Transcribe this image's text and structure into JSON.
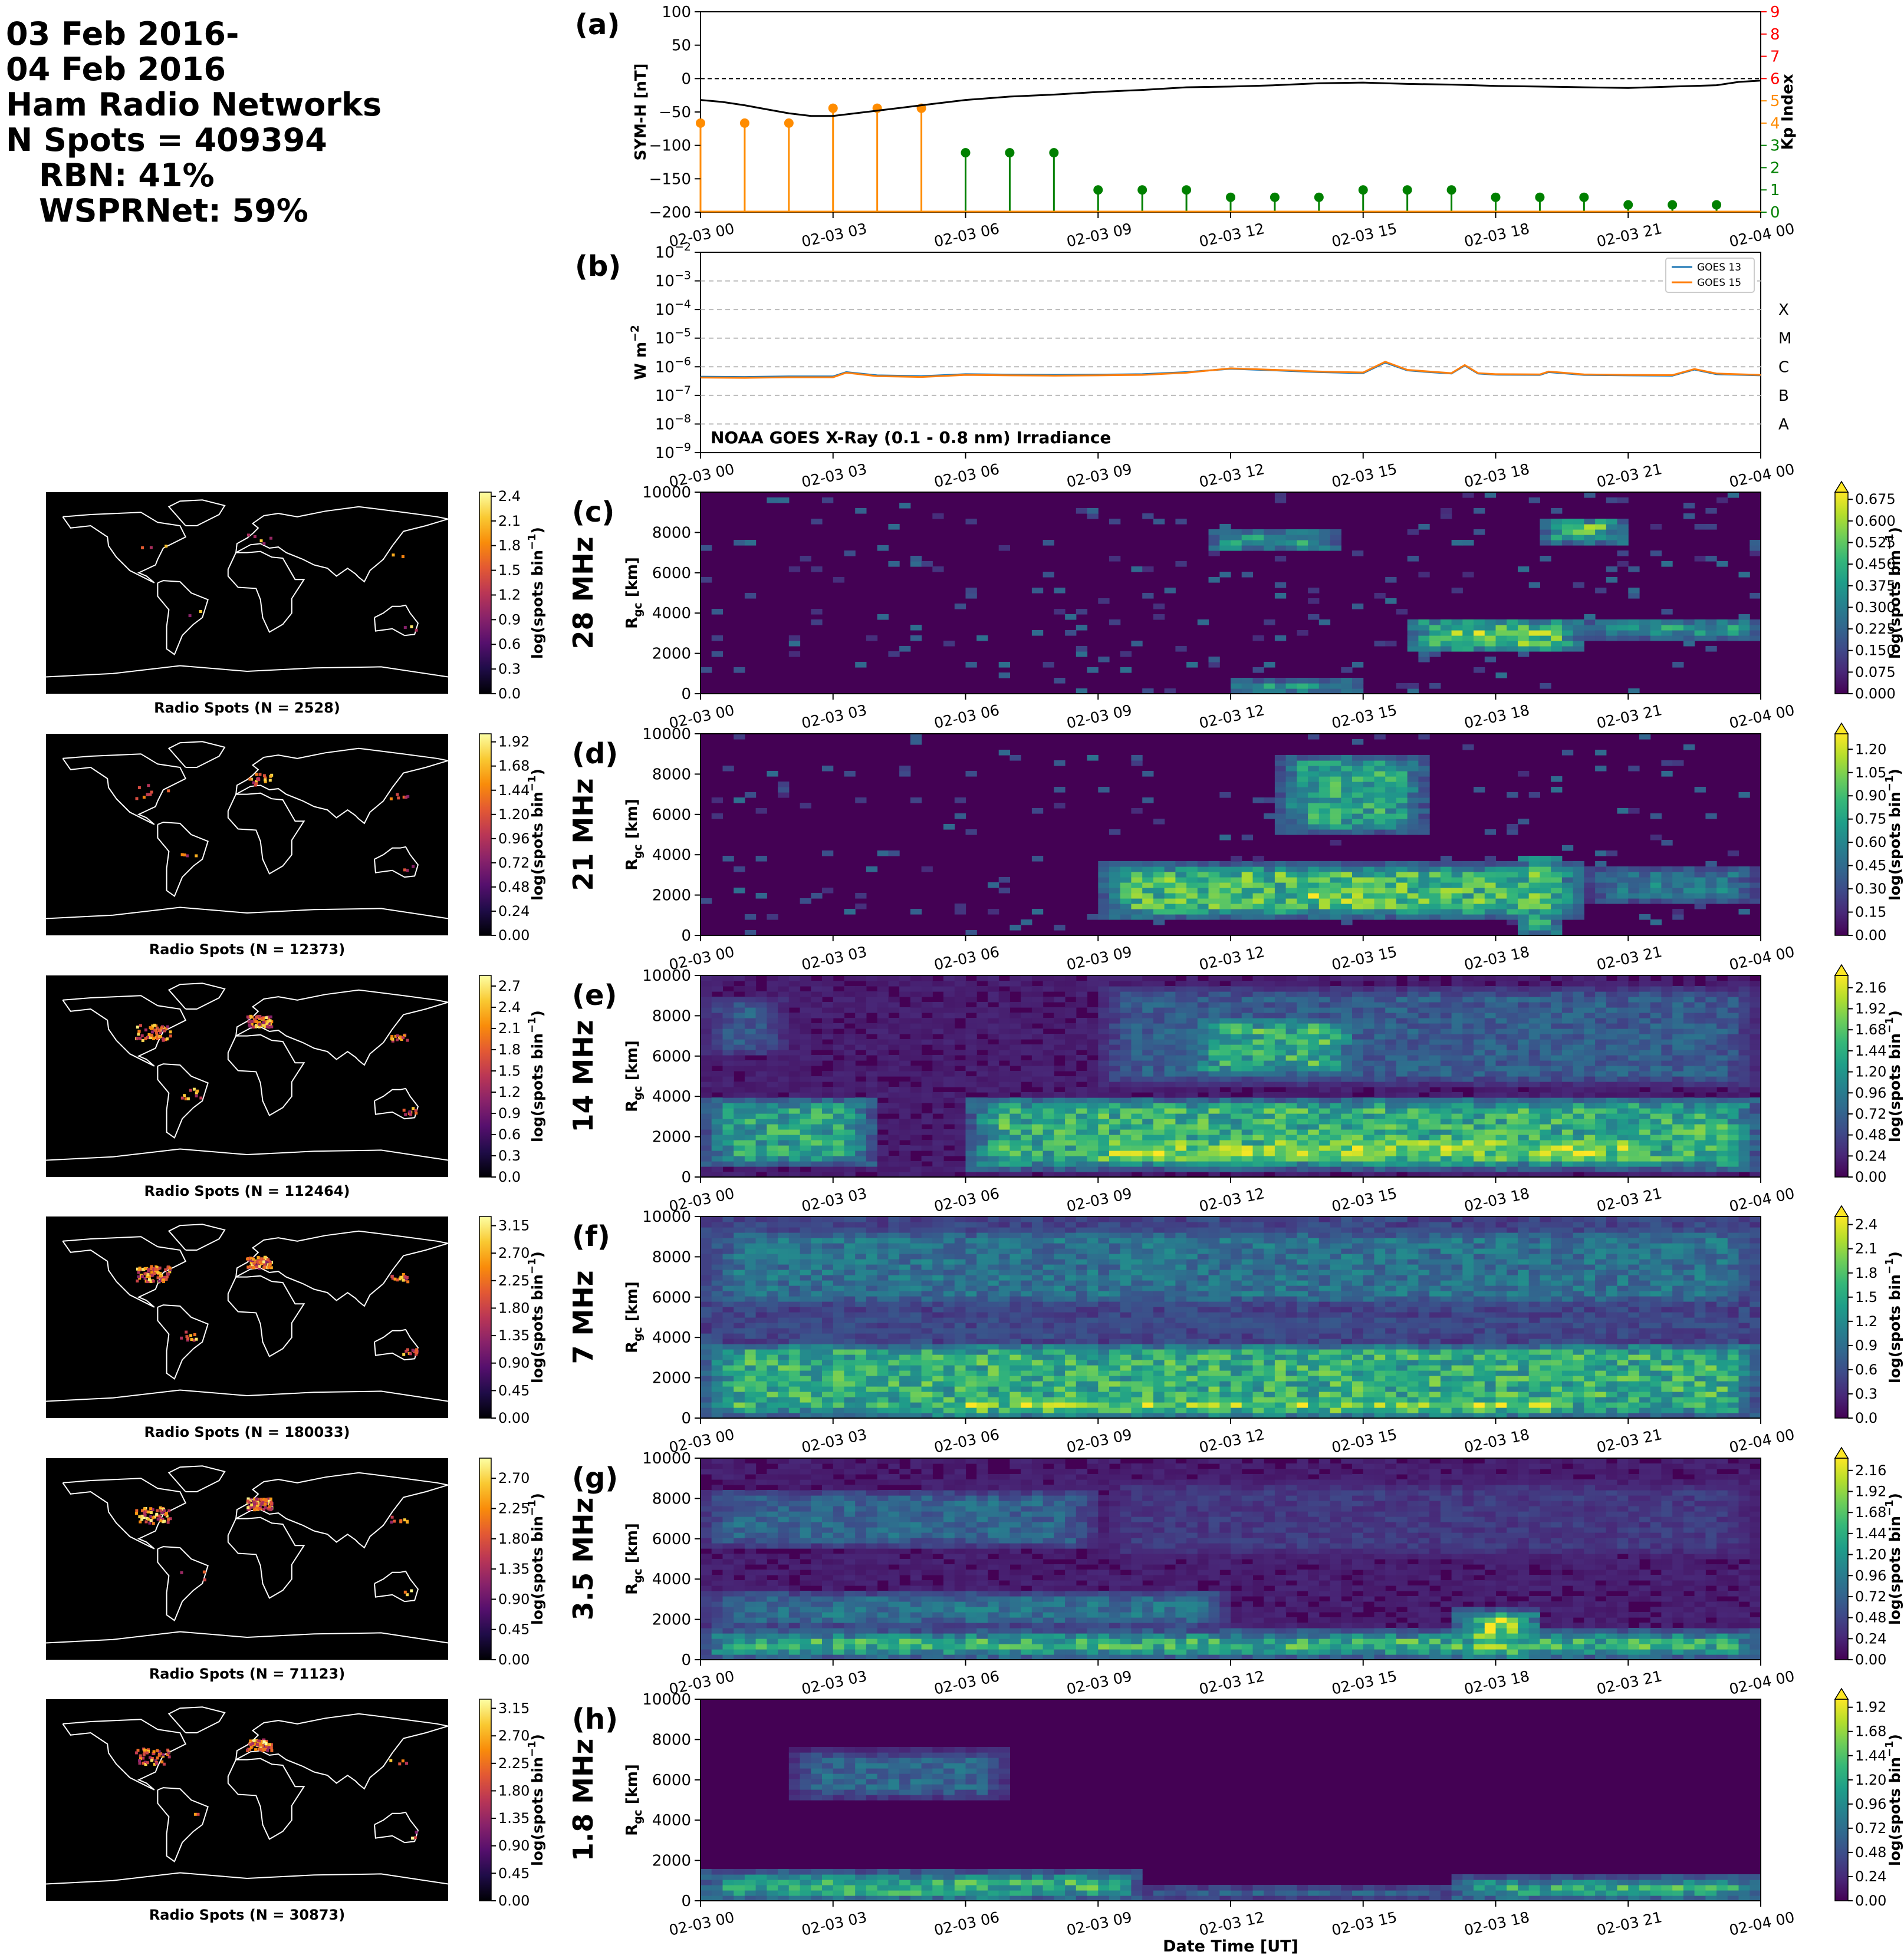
{
  "header": {
    "line1": "03 Feb 2016-",
    "line2": "04 Feb 2016",
    "line3": "Ham Radio Networks",
    "line4": "N Spots = 409394",
    "line5": "RBN: 41%",
    "line6": "WSPRNet: 59%"
  },
  "colors": {
    "sym_h": "#000000",
    "kp_low": "#008000",
    "kp_storm": "#ff8c00",
    "goes13": "#1f77b4",
    "goes15": "#ff7f0e",
    "kp_axis": "#ff0000",
    "map_bg": "#000000",
    "coast": "#ffffff"
  },
  "chart_data": [
    {
      "id": "a",
      "panel_label": "(a)",
      "type": "line",
      "ylabel": "SYM-H [nT]",
      "ylabel_right": "Kp Index",
      "ylim": [
        -200,
        100
      ],
      "ylim_right": [
        0,
        9
      ],
      "yticks": [
        100,
        50,
        0,
        -50,
        -100,
        -150,
        -200
      ],
      "yticks_right": [
        0,
        1,
        2,
        3,
        4,
        5,
        6,
        7,
        8,
        9
      ],
      "x_tick_labels": [
        "02-03 00",
        "02-03 03",
        "02-03 06",
        "02-03 09",
        "02-03 12",
        "02-03 15",
        "02-03 18",
        "02-03 21",
        "02-04 00"
      ],
      "x_range_hours": [
        0,
        24
      ],
      "sym_h": {
        "x": [
          0,
          0.5,
          1,
          1.5,
          2,
          2.5,
          3,
          3.5,
          4,
          4.5,
          5,
          5.5,
          6,
          7,
          8,
          9,
          10,
          11,
          12,
          13,
          14,
          15,
          16,
          17,
          18,
          19,
          20,
          21,
          22,
          23,
          23.5,
          24
        ],
        "y": [
          -32,
          -35,
          -40,
          -46,
          -52,
          -56,
          -56,
          -52,
          -48,
          -44,
          -40,
          -36,
          -32,
          -27,
          -24,
          -20,
          -17,
          -13,
          -12,
          -10,
          -7,
          -6,
          -8,
          -9,
          -11,
          -12,
          -13,
          -14,
          -12,
          -10,
          -5,
          -3
        ]
      },
      "kp": {
        "x": [
          0,
          1,
          2,
          3,
          4,
          5,
          6,
          7,
          8,
          9,
          10,
          11,
          12,
          13,
          14,
          15,
          16,
          17,
          18,
          19,
          20,
          21,
          22,
          23
        ],
        "y": [
          4,
          4,
          4,
          4.67,
          4.67,
          4.67,
          2.67,
          2.67,
          2.67,
          1,
          1,
          1,
          0.67,
          0.67,
          0.67,
          1,
          1,
          1,
          0.67,
          0.67,
          0.67,
          0.33,
          0.33,
          0.33
        ]
      }
    },
    {
      "id": "b",
      "panel_label": "(b)",
      "type": "line",
      "ylabel": "W m",
      "ylabel_sup": "−2",
      "log_scale": true,
      "ylim_exp": [
        -9,
        -2
      ],
      "flare_classes": [
        "X",
        "M",
        "C",
        "B",
        "A"
      ],
      "flare_class_exps": [
        -4,
        -5,
        -6,
        -7,
        -8
      ],
      "annotation": "NOAA GOES X-Ray (0.1 - 0.8 nm) Irradiance",
      "x_tick_labels": [
        "02-03 00",
        "02-03 03",
        "02-03 06",
        "02-03 09",
        "02-03 12",
        "02-03 15",
        "02-03 18",
        "02-03 21",
        "02-04 00"
      ],
      "series": [
        {
          "name": "GOES 13",
          "x": [
            0,
            1,
            2,
            3,
            3.3,
            4,
            5,
            6,
            7,
            8,
            9,
            10,
            11,
            12,
            13,
            14,
            15,
            15.5,
            16,
            16.5,
            17,
            17.3,
            17.6,
            18,
            19,
            19.2,
            20,
            21,
            22,
            22.5,
            23,
            24
          ],
          "y": [
            4.5e-07,
            4.4e-07,
            4.6e-07,
            4.6e-07,
            6.5e-07,
            5e-07,
            4.7e-07,
            5.5e-07,
            5.3e-07,
            5.2e-07,
            5.3e-07,
            5.5e-07,
            6.5e-07,
            8.5e-07,
            7.5e-07,
            6.5e-07,
            6e-07,
            1.4e-06,
            7.5e-07,
            6.5e-07,
            5.8e-07,
            1.1e-06,
            5.8e-07,
            5.3e-07,
            5.2e-07,
            6.5e-07,
            5.2e-07,
            5e-07,
            4.9e-07,
            8e-07,
            5.5e-07,
            5e-07
          ]
        },
        {
          "name": "GOES 15",
          "x": [
            0,
            1,
            2,
            3,
            3.3,
            4,
            5,
            6,
            7,
            8,
            9,
            10,
            11,
            12,
            13,
            14,
            15,
            15.5,
            16,
            16.5,
            17,
            17.3,
            17.6,
            18,
            19,
            19.2,
            20,
            21,
            22,
            22.5,
            23,
            24
          ],
          "y": [
            4.2e-07,
            4.1e-07,
            4.3e-07,
            4.3e-07,
            6.2e-07,
            4.7e-07,
            4.4e-07,
            5.2e-07,
            5e-07,
            4.9e-07,
            5e-07,
            5.2e-07,
            6.2e-07,
            8.8e-07,
            7.8e-07,
            6.8e-07,
            6.3e-07,
            1.5e-06,
            7.8e-07,
            6.8e-07,
            6e-07,
            1.15e-06,
            6e-07,
            5.5e-07,
            5.4e-07,
            6.8e-07,
            5.4e-07,
            5.2e-07,
            5.1e-07,
            8.3e-07,
            5.8e-07,
            5.2e-07
          ]
        }
      ]
    },
    {
      "id": "c",
      "panel_label": "(c)",
      "type": "heatmap",
      "band": "28 MHz",
      "ylabel": "R",
      "ylabel_sub": "gc",
      "ylabel_unit": " [km]",
      "ylim": [
        0,
        10000
      ],
      "yticks": [
        0,
        2000,
        4000,
        6000,
        8000,
        10000
      ],
      "cbar_label": "log(spots bin",
      "cbar_sup": "−1",
      "cbar_close": ")",
      "cbar_ticks": [
        "0.000",
        "0.075",
        "0.150",
        "0.225",
        "0.300",
        "0.375",
        "0.450",
        "0.525",
        "0.600",
        "0.675"
      ],
      "cbar_max": 0.7,
      "map_cbar_ticks": [
        "0.0",
        "0.3",
        "0.6",
        "0.9",
        "1.2",
        "1.5",
        "1.8",
        "2.1",
        "2.4"
      ],
      "map_cbar_max": 2.45,
      "map_caption": "Radio Spots (N = 2528)",
      "hotspots": [
        {
          "h": [
            11.5,
            14.5
          ],
          "r": [
            7000,
            8200
          ],
          "v": 0.8
        },
        {
          "h": [
            12,
            15
          ],
          "r": [
            0,
            700
          ],
          "v": 0.9
        },
        {
          "h": [
            16,
            20
          ],
          "r": [
            2000,
            3800
          ],
          "v": 0.9
        },
        {
          "h": [
            19,
            21
          ],
          "r": [
            7400,
            8800
          ],
          "v": 0.9
        },
        {
          "h": [
            20,
            24
          ],
          "r": [
            2600,
            3800
          ],
          "v": 0.7
        }
      ],
      "sparse": 0.06,
      "background": 0.0
    },
    {
      "id": "d",
      "panel_label": "(d)",
      "type": "heatmap",
      "band": "21 MHz",
      "ylabel": "R",
      "ylabel_sub": "gc",
      "ylabel_unit": " [km]",
      "ylim": [
        0,
        10000
      ],
      "yticks": [
        0,
        2000,
        4000,
        6000,
        8000,
        10000
      ],
      "cbar_label": "log(spots bin",
      "cbar_sup": "−1",
      "cbar_close": ")",
      "cbar_ticks": [
        "0.00",
        "0.15",
        "0.30",
        "0.45",
        "0.60",
        "0.75",
        "0.90",
        "1.05",
        "1.20"
      ],
      "cbar_max": 1.3,
      "map_cbar_ticks": [
        "0.00",
        "0.24",
        "0.48",
        "0.72",
        "0.96",
        "1.20",
        "1.44",
        "1.68",
        "1.92"
      ],
      "map_cbar_max": 2.0,
      "map_caption": "Radio Spots (N = 12373)",
      "hotspots": [
        {
          "h": [
            9,
            20
          ],
          "r": [
            800,
            3600
          ],
          "v": 0.8
        },
        {
          "h": [
            13,
            16
          ],
          "r": [
            1200,
            2800
          ],
          "v": 1.0
        },
        {
          "h": [
            13,
            16.5
          ],
          "r": [
            5000,
            9000
          ],
          "v": 0.7
        },
        {
          "h": [
            18.5,
            19.5
          ],
          "r": [
            0,
            4000
          ],
          "v": 1.0
        },
        {
          "h": [
            20,
            24
          ],
          "r": [
            1500,
            3500
          ],
          "v": 0.5
        }
      ],
      "sparse": 0.05,
      "background": 0.0
    },
    {
      "id": "e",
      "panel_label": "(e)",
      "type": "heatmap",
      "band": "14 MHz",
      "ylabel": "R",
      "ylabel_sub": "gc",
      "ylabel_unit": " [km]",
      "ylim": [
        0,
        10000
      ],
      "yticks": [
        0,
        2000,
        4000,
        6000,
        8000,
        10000
      ],
      "cbar_label": "log(spots bin",
      "cbar_sup": "−1",
      "cbar_close": ")",
      "cbar_ticks": [
        "0.00",
        "0.24",
        "0.48",
        "0.72",
        "0.96",
        "1.20",
        "1.44",
        "1.68",
        "1.92",
        "2.16"
      ],
      "cbar_max": 2.3,
      "map_cbar_ticks": [
        "0.0",
        "0.3",
        "0.6",
        "0.9",
        "1.2",
        "1.5",
        "1.8",
        "2.1",
        "2.4",
        "2.7"
      ],
      "map_cbar_max": 2.85,
      "map_caption": "Radio Spots (N = 112464)",
      "hotspots": [
        {
          "h": [
            0,
            4
          ],
          "r": [
            500,
            4000
          ],
          "v": 0.7
        },
        {
          "h": [
            6,
            24
          ],
          "r": [
            300,
            4000
          ],
          "v": 0.75
        },
        {
          "h": [
            8,
            22
          ],
          "r": [
            500,
            2200
          ],
          "v": 0.95
        },
        {
          "h": [
            11,
            15
          ],
          "r": [
            5000,
            8000
          ],
          "v": 0.75
        },
        {
          "h": [
            0,
            2
          ],
          "r": [
            6000,
            9000
          ],
          "v": 0.35
        },
        {
          "h": [
            9,
            24
          ],
          "r": [
            4500,
            9500
          ],
          "v": 0.35
        }
      ],
      "sparse": 0.0,
      "background": 0.08
    },
    {
      "id": "f",
      "panel_label": "(f)",
      "type": "heatmap",
      "band": "7 MHz",
      "ylabel": "R",
      "ylabel_sub": "gc",
      "ylabel_unit": " [km]",
      "ylim": [
        0,
        10000
      ],
      "yticks": [
        0,
        2000,
        4000,
        6000,
        8000,
        10000
      ],
      "cbar_label": "log(spots bin",
      "cbar_sup": "−1",
      "cbar_close": ")",
      "cbar_ticks": [
        "0.0",
        "0.3",
        "0.6",
        "0.9",
        "1.2",
        "1.5",
        "1.8",
        "2.1",
        "2.4"
      ],
      "cbar_max": 2.5,
      "map_cbar_ticks": [
        "0.00",
        "0.45",
        "0.90",
        "1.35",
        "1.80",
        "2.25",
        "2.70",
        "3.15"
      ],
      "map_cbar_max": 3.3,
      "map_caption": "Radio Spots (N = 180033)",
      "hotspots": [
        {
          "h": [
            0,
            24
          ],
          "r": [
            0,
            3800
          ],
          "v": 0.75
        },
        {
          "h": [
            5,
            20
          ],
          "r": [
            0,
            1200
          ],
          "v": 1.0
        },
        {
          "h": [
            0,
            24
          ],
          "r": [
            5500,
            9500
          ],
          "v": 0.45
        },
        {
          "h": [
            0,
            24
          ],
          "r": [
            3800,
            5500
          ],
          "v": 0.25
        }
      ],
      "sparse": 0.0,
      "background": 0.2
    },
    {
      "id": "g",
      "panel_label": "(g)",
      "type": "heatmap",
      "band": "3.5 MHz",
      "ylabel": "R",
      "ylabel_sub": "gc",
      "ylabel_unit": " [km]",
      "ylim": [
        0,
        10000
      ],
      "yticks": [
        0,
        2000,
        4000,
        6000,
        8000,
        10000
      ],
      "cbar_label": "log(spots bin",
      "cbar_sup": "−1",
      "cbar_close": ")",
      "cbar_ticks": [
        "0.00",
        "0.24",
        "0.48",
        "0.72",
        "0.96",
        "1.20",
        "1.44",
        "1.68",
        "1.92",
        "2.16"
      ],
      "cbar_max": 2.3,
      "map_cbar_ticks": [
        "0.00",
        "0.45",
        "0.90",
        "1.35",
        "1.80",
        "2.25",
        "2.70"
      ],
      "map_cbar_max": 3.0,
      "map_caption": "Radio Spots (N = 71123)",
      "hotspots": [
        {
          "h": [
            0,
            24
          ],
          "r": [
            0,
            1500
          ],
          "v": 0.75
        },
        {
          "h": [
            17,
            19
          ],
          "r": [
            0,
            2500
          ],
          "v": 1.0
        },
        {
          "h": [
            0,
            12
          ],
          "r": [
            1500,
            3500
          ],
          "v": 0.45
        },
        {
          "h": [
            0,
            9
          ],
          "r": [
            5500,
            8500
          ],
          "v": 0.4
        },
        {
          "h": [
            9,
            24
          ],
          "r": [
            5000,
            9000
          ],
          "v": 0.2
        }
      ],
      "sparse": 0.0,
      "background": 0.08
    },
    {
      "id": "h",
      "panel_label": "(h)",
      "type": "heatmap",
      "band": "1.8 MHz",
      "ylabel": "R",
      "ylabel_sub": "gc",
      "ylabel_unit": " [km]",
      "ylim": [
        0,
        10000
      ],
      "yticks": [
        0,
        2000,
        4000,
        6000,
        8000,
        10000
      ],
      "cbar_label": "log(spots bin",
      "cbar_sup": "−1",
      "cbar_close": ")",
      "cbar_ticks": [
        "0.00",
        "0.24",
        "0.48",
        "0.72",
        "0.96",
        "1.20",
        "1.44",
        "1.68",
        "1.92"
      ],
      "cbar_max": 2.0,
      "map_cbar_ticks": [
        "0.00",
        "0.45",
        "0.90",
        "1.35",
        "1.80",
        "2.25",
        "2.70",
        "3.15"
      ],
      "map_cbar_max": 3.3,
      "map_caption": "Radio Spots (N = 30873)",
      "hotspots": [
        {
          "h": [
            0,
            10
          ],
          "r": [
            0,
            1500
          ],
          "v": 0.75
        },
        {
          "h": [
            2,
            7
          ],
          "r": [
            0,
            800
          ],
          "v": 0.95
        },
        {
          "h": [
            17,
            24
          ],
          "r": [
            0,
            1200
          ],
          "v": 0.8
        },
        {
          "h": [
            10,
            17
          ],
          "r": [
            0,
            800
          ],
          "v": 0.45
        },
        {
          "h": [
            2,
            7
          ],
          "r": [
            5000,
            7500
          ],
          "v": 0.4
        }
      ],
      "sparse": 0.0,
      "background": 0.0
    }
  ],
  "x_tick_labels": [
    "02-03 00",
    "02-03 03",
    "02-03 06",
    "02-03 09",
    "02-03 12",
    "02-03 15",
    "02-03 18",
    "02-03 21",
    "02-04 00"
  ],
  "xlabel": "Date Time [UT]"
}
